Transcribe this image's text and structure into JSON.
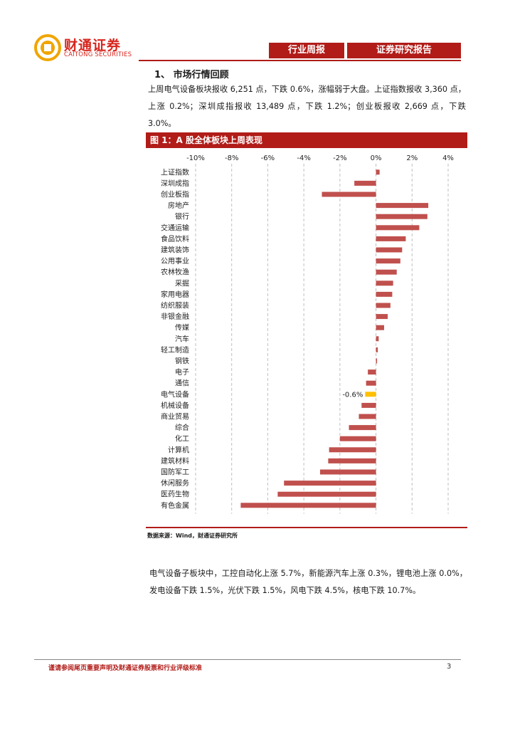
{
  "header": {
    "brand_cn": "财通证券",
    "brand_en": "CAITONG SECURITIES",
    "tag_weekly": "行业周报",
    "tag_report": "证券研究报告"
  },
  "section": {
    "title": "1、 市场行情回顾",
    "paragraph": "上周电气设备板块报收 6,251 点，下跌 0.6%，涨幅弱于大盘。上证指数报收 3,360 点，上涨 0.2%；深圳成指报收 13,489 点，下跌 1.2%；创业板报收 2,669 点，下跌 3.0%。"
  },
  "figure": {
    "title": "图 1：A 股全体板块上周表现",
    "source": "数据来源：Wind，财通证券研究所"
  },
  "chart_data": {
    "type": "bar",
    "orientation": "horizontal",
    "title": "A 股全体板块上周表现",
    "xlim": [
      -10,
      4
    ],
    "xticks": [
      -10,
      -8,
      -6,
      -4,
      -2,
      0,
      2,
      4
    ],
    "xtick_labels": [
      "-10%",
      "-8%",
      "-6%",
      "-4%",
      "-2%",
      "0%",
      "2%",
      "4%"
    ],
    "categories": [
      "上证指数",
      "深圳成指",
      "创业板指",
      "房地产",
      "银行",
      "交通运输",
      "食品饮料",
      "建筑装饰",
      "公用事业",
      "农林牧渔",
      "采掘",
      "家用电器",
      "纺织服装",
      "非银金融",
      "传媒",
      "汽车",
      "轻工制造",
      "钢铁",
      "电子",
      "通信",
      "电气设备",
      "机械设备",
      "商业贸易",
      "综合",
      "化工",
      "计算机",
      "建筑材料",
      "国防军工",
      "休闲服务",
      "医药生物",
      "有色金属"
    ],
    "values": [
      0.2,
      -1.2,
      -3.0,
      2.9,
      2.85,
      2.4,
      1.65,
      1.45,
      1.35,
      1.15,
      0.95,
      0.9,
      0.8,
      0.65,
      0.45,
      0.15,
      0.1,
      0.05,
      -0.45,
      -0.55,
      -0.6,
      -0.8,
      -0.95,
      -1.5,
      -2.0,
      -2.6,
      -2.65,
      -3.1,
      -5.1,
      -5.45,
      -7.5
    ],
    "highlight_category": "电气设备",
    "highlight_label": "-0.6%",
    "colors": {
      "bar": "#c0504d",
      "highlight": "#ffc000",
      "grid": "#bfbfbf"
    }
  },
  "subsector": {
    "paragraph": "电气设备子板块中，工控自动化上涨 5.7%，新能源汽车上涨 0.3%，锂电池上涨 0.0%，发电设备下跌 1.5%，光伏下跌 1.5%，风电下跌 4.5%，核电下跌 10.7%。"
  },
  "footer": {
    "disclaimer": "谨请参阅尾页重要声明及财通证券股票和行业评级标准",
    "page_number": "3"
  }
}
